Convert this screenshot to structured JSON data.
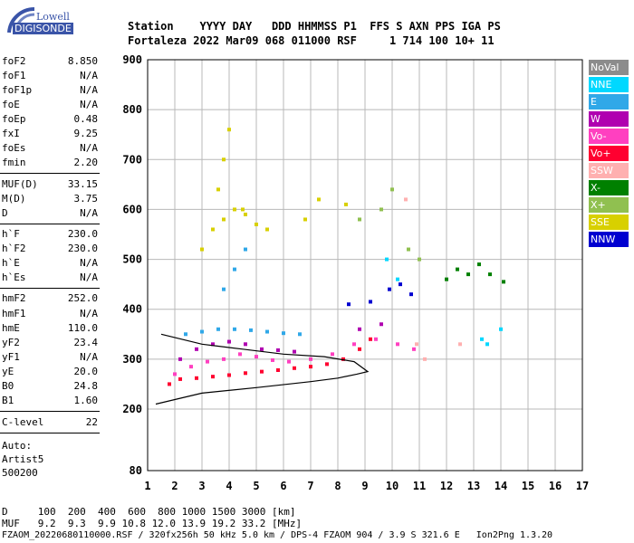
{
  "logo": {
    "top": "Lowell",
    "main": "DIGISONDE"
  },
  "header": {
    "line1": "Station    YYYY DAY   DDD HHMMSS P1  FFS S AXN PPS IGA PS",
    "line2": "Fortaleza 2022 Mar09 068 011000 RSF     1 714 100 10+ 11"
  },
  "params_group1": [
    {
      "name": "foF2",
      "value": "8.850"
    },
    {
      "name": "foF1",
      "value": "N/A"
    },
    {
      "name": "foF1p",
      "value": "N/A"
    },
    {
      "name": "foE",
      "value": "N/A"
    },
    {
      "name": "foEp",
      "value": "0.48"
    },
    {
      "name": "fxI",
      "value": "9.25"
    },
    {
      "name": "foEs",
      "value": "N/A"
    },
    {
      "name": "fmin",
      "value": "2.20"
    }
  ],
  "params_group2": [
    {
      "name": "MUF(D)",
      "value": "33.15"
    },
    {
      "name": "M(D)",
      "value": "3.75"
    },
    {
      "name": "D",
      "value": "N/A"
    }
  ],
  "params_group3": [
    {
      "name": "h`F",
      "value": "230.0"
    },
    {
      "name": "h`F2",
      "value": "230.0"
    },
    {
      "name": "h`E",
      "value": "N/A"
    },
    {
      "name": "h`Es",
      "value": "N/A"
    }
  ],
  "params_group4": [
    {
      "name": "hmF2",
      "value": "252.0"
    },
    {
      "name": "hmF1",
      "value": "N/A"
    },
    {
      "name": "hmE",
      "value": "110.0"
    },
    {
      "name": "yF2",
      "value": "23.4"
    },
    {
      "name": "yF1",
      "value": "N/A"
    },
    {
      "name": "yE",
      "value": "20.0"
    },
    {
      "name": "B0",
      "value": "24.8"
    },
    {
      "name": "B1",
      "value": "1.60"
    }
  ],
  "params_group5": [
    {
      "name": "C-level",
      "value": "22"
    }
  ],
  "auto": {
    "line1": "Auto:",
    "line2": "Artist5",
    "line3": "500200"
  },
  "legend": [
    {
      "label": "NoVal",
      "color": "#8c8c8c"
    },
    {
      "label": "NNE",
      "color": "#00d8ff"
    },
    {
      "label": "E",
      "color": "#30a8e8"
    },
    {
      "label": "W",
      "color": "#b000b0"
    },
    {
      "label": "Vo-",
      "color": "#ff40c0"
    },
    {
      "label": "Vo+",
      "color": "#ff0030"
    },
    {
      "label": "SSW",
      "color": "#ffb0b0"
    },
    {
      "label": "X-",
      "color": "#008000"
    },
    {
      "label": "X+",
      "color": "#90c050"
    },
    {
      "label": "SSE",
      "color": "#d8d000"
    },
    {
      "label": "NNW",
      "color": "#0000d0"
    }
  ],
  "footer": {
    "line1": "D     100  200  400  600  800 1000 1500 3000 [km]",
    "line2": "MUF   9.2  9.3  9.9 10.8 12.0 13.9 19.2 33.2 [MHz]",
    "line3": "FZAOM_20220680110000.RSF / 320fx256h 50 kHz 5.0 km / DPS-4 FZAOM 904 / 3.9 S 321.6 E   Ion2Png 1.3.20"
  },
  "chart_data": {
    "type": "scatter",
    "xlim": [
      1,
      17
    ],
    "ylim": [
      80,
      900
    ],
    "xticks": [
      "1",
      "2",
      "3",
      "4",
      "5",
      "6",
      "7",
      "8",
      "9",
      "10",
      "11",
      "12",
      "13",
      "14",
      "15",
      "16",
      "17"
    ],
    "yticks": [
      "80",
      "200",
      "300",
      "400",
      "500",
      "600",
      "700",
      "800",
      "900"
    ],
    "grid": true,
    "series": [
      {
        "color": "#ff0030",
        "points": [
          [
            1.8,
            250
          ],
          [
            2.2,
            260
          ],
          [
            2.8,
            262
          ],
          [
            3.4,
            265
          ],
          [
            4.0,
            268
          ],
          [
            4.6,
            272
          ],
          [
            5.2,
            275
          ],
          [
            5.8,
            278
          ],
          [
            6.4,
            282
          ],
          [
            7.0,
            285
          ],
          [
            7.6,
            290
          ],
          [
            8.2,
            300
          ],
          [
            8.8,
            320
          ],
          [
            9.2,
            340
          ]
        ]
      },
      {
        "color": "#ff40c0",
        "points": [
          [
            2.0,
            270
          ],
          [
            2.6,
            285
          ],
          [
            3.2,
            295
          ],
          [
            3.8,
            300
          ],
          [
            4.4,
            310
          ],
          [
            5.0,
            305
          ],
          [
            5.6,
            298
          ],
          [
            6.2,
            295
          ],
          [
            7.0,
            300
          ],
          [
            7.8,
            310
          ],
          [
            8.6,
            330
          ],
          [
            9.4,
            340
          ],
          [
            10.2,
            330
          ],
          [
            10.8,
            320
          ]
        ]
      },
      {
        "color": "#b000b0",
        "points": [
          [
            2.2,
            300
          ],
          [
            2.8,
            320
          ],
          [
            3.4,
            330
          ],
          [
            4.0,
            335
          ],
          [
            4.6,
            330
          ],
          [
            5.2,
            320
          ],
          [
            5.8,
            318
          ],
          [
            6.4,
            315
          ],
          [
            8.8,
            360
          ],
          [
            9.6,
            370
          ]
        ]
      },
      {
        "color": "#30a8e8",
        "points": [
          [
            2.4,
            350
          ],
          [
            3.0,
            355
          ],
          [
            3.6,
            360
          ],
          [
            4.2,
            360
          ],
          [
            4.8,
            358
          ],
          [
            5.4,
            355
          ],
          [
            6.0,
            352
          ],
          [
            6.6,
            350
          ],
          [
            3.8,
            440
          ],
          [
            4.2,
            480
          ],
          [
            4.6,
            520
          ]
        ]
      },
      {
        "color": "#00d8ff",
        "points": [
          [
            13.3,
            340
          ],
          [
            13.5,
            330
          ],
          [
            14.0,
            360
          ],
          [
            9.8,
            500
          ],
          [
            10.2,
            460
          ]
        ]
      },
      {
        "color": "#d8d000",
        "points": [
          [
            3.0,
            520
          ],
          [
            3.4,
            560
          ],
          [
            3.8,
            580
          ],
          [
            4.2,
            600
          ],
          [
            4.6,
            590
          ],
          [
            5.0,
            570
          ],
          [
            5.4,
            560
          ],
          [
            3.6,
            640
          ],
          [
            3.8,
            700
          ],
          [
            4.0,
            760
          ],
          [
            4.5,
            600
          ],
          [
            6.8,
            580
          ],
          [
            7.3,
            620
          ],
          [
            8.3,
            610
          ]
        ]
      },
      {
        "color": "#008000",
        "points": [
          [
            12.0,
            460
          ],
          [
            12.4,
            480
          ],
          [
            12.8,
            470
          ],
          [
            13.2,
            490
          ],
          [
            13.6,
            470
          ],
          [
            14.1,
            455
          ]
        ]
      },
      {
        "color": "#90c050",
        "points": [
          [
            8.8,
            580
          ],
          [
            9.6,
            600
          ],
          [
            10.0,
            640
          ],
          [
            10.6,
            520
          ],
          [
            11.0,
            500
          ]
        ]
      },
      {
        "color": "#0000d0",
        "points": [
          [
            9.9,
            440
          ],
          [
            10.3,
            450
          ],
          [
            10.7,
            430
          ],
          [
            8.4,
            410
          ],
          [
            9.2,
            415
          ]
        ]
      },
      {
        "color": "#ffb0b0",
        "points": [
          [
            10.5,
            620
          ],
          [
            10.9,
            330
          ],
          [
            11.2,
            300
          ],
          [
            12.5,
            330
          ]
        ]
      }
    ],
    "profile_curve": [
      [
        1.3,
        210
      ],
      [
        3.0,
        232
      ],
      [
        5.0,
        243
      ],
      [
        7.0,
        255
      ],
      [
        8.0,
        262
      ],
      [
        8.7,
        270
      ],
      [
        9.1,
        275
      ],
      [
        8.6,
        295
      ],
      [
        7.5,
        305
      ],
      [
        6.0,
        310
      ],
      [
        4.5,
        320
      ],
      [
        3.0,
        330
      ],
      [
        1.5,
        350
      ]
    ]
  }
}
